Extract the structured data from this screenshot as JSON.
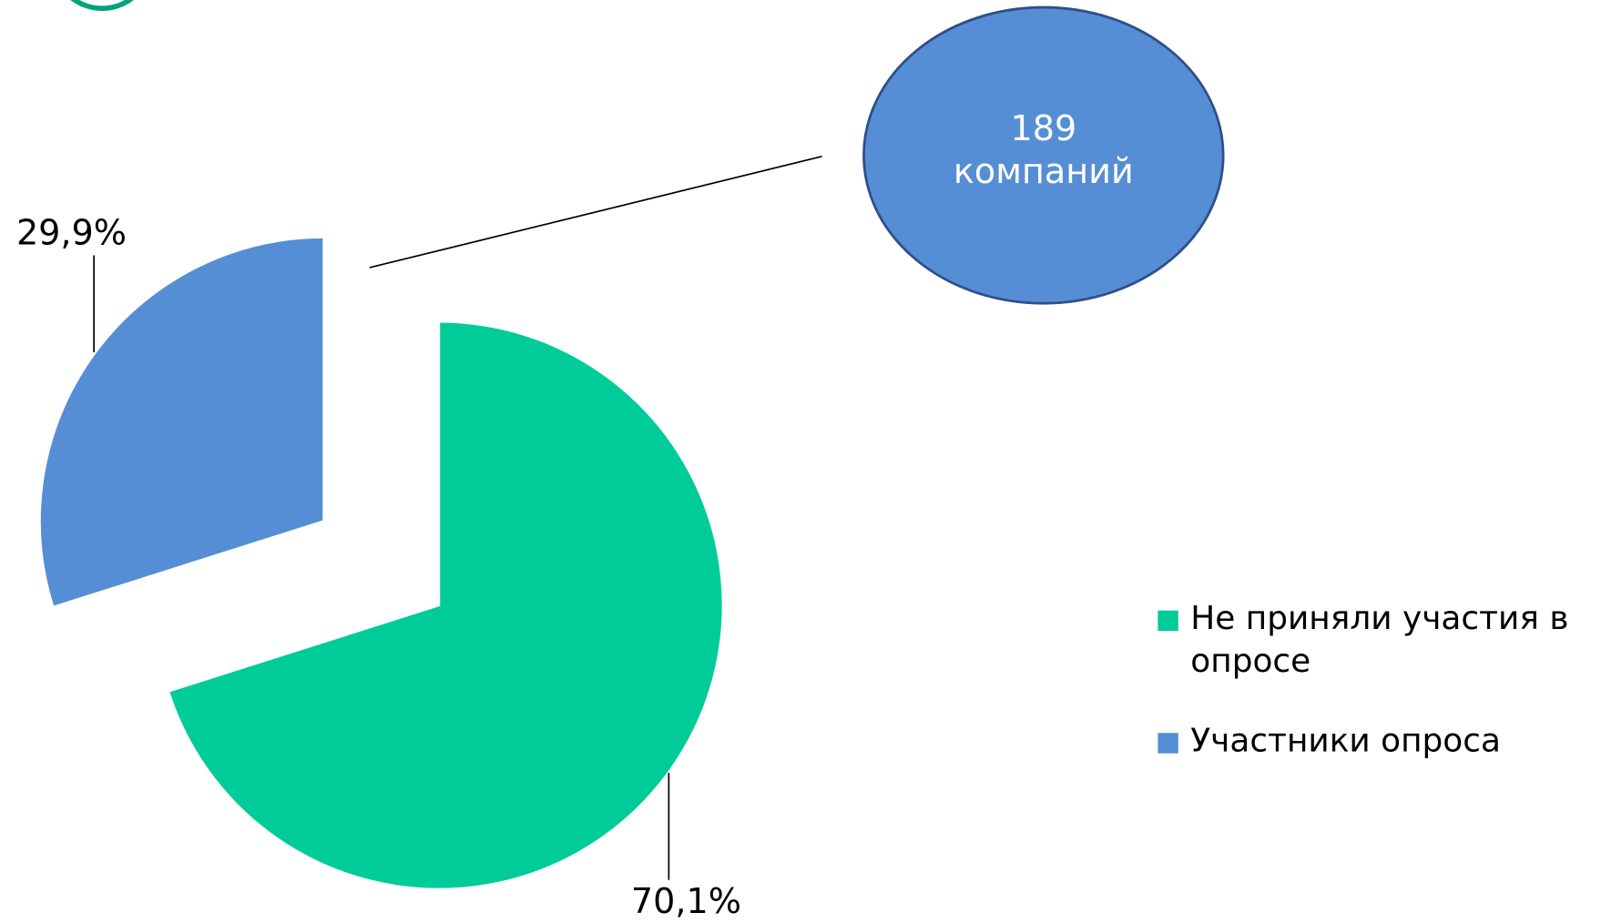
{
  "chart_data": {
    "type": "pie",
    "categories": [
      "Не приняли участия в опросе",
      "Участники опроса"
    ],
    "values": [
      70.1,
      29.9
    ],
    "value_labels": [
      "70,1%",
      "29,9%"
    ],
    "colors": [
      "#00cc99",
      "#558ed5"
    ],
    "annotation": "189 компаний",
    "legend": "right"
  }
}
